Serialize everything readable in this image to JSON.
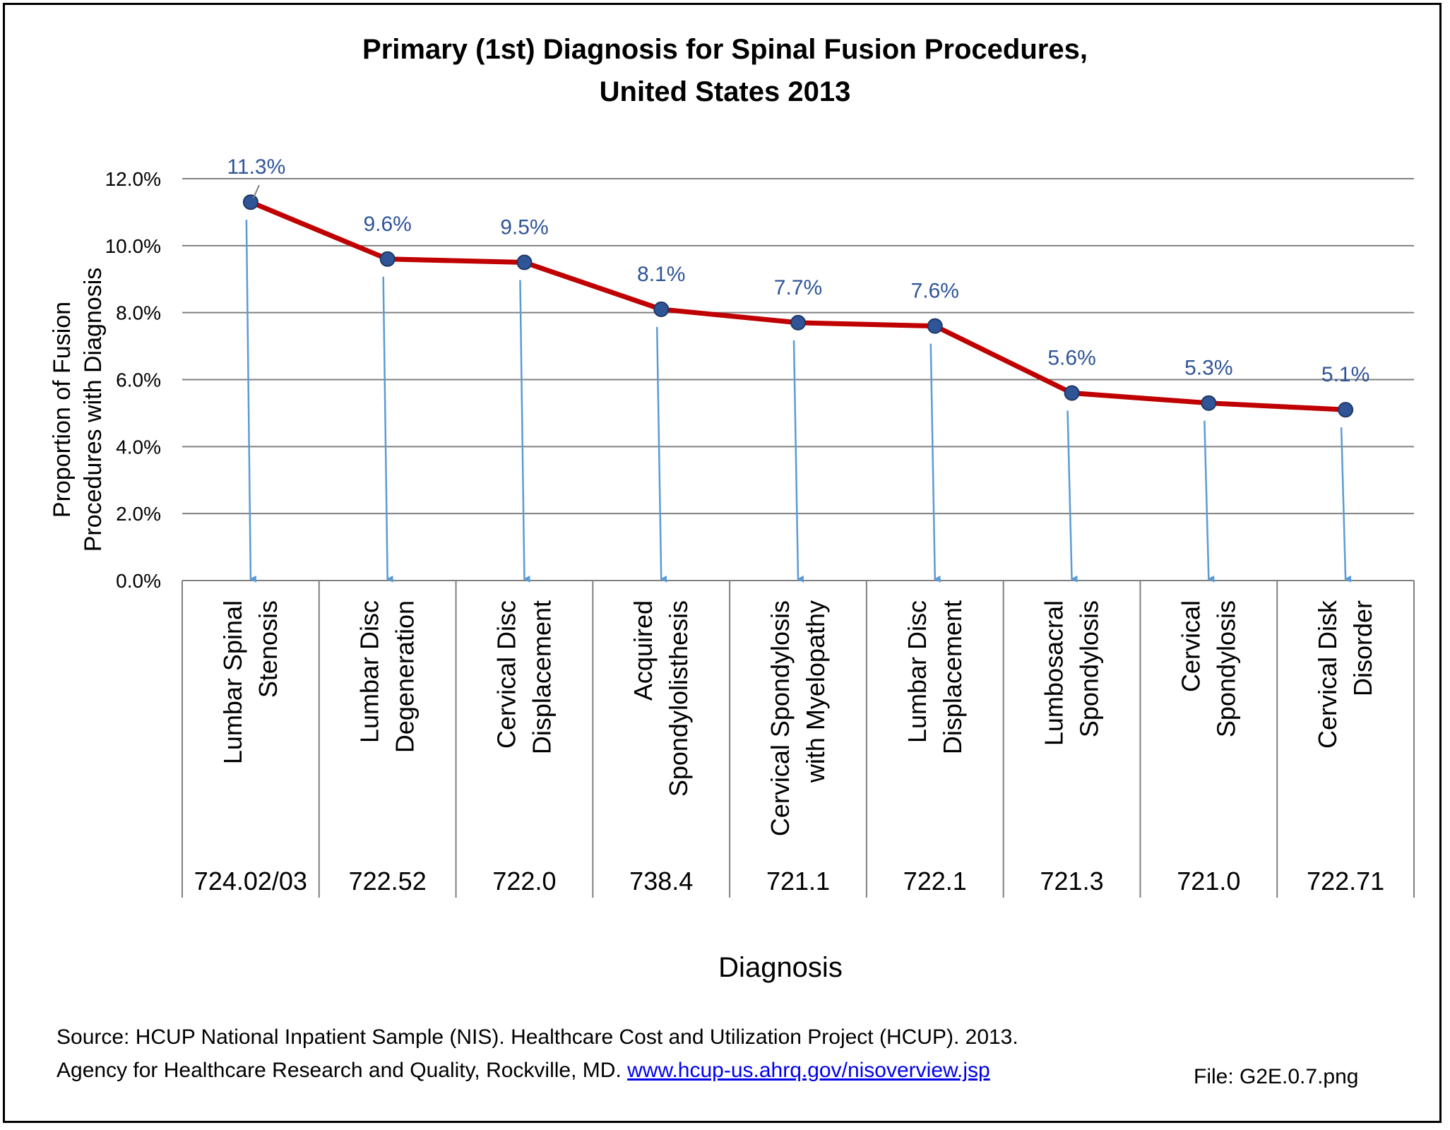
{
  "title_line1": "Primary (1st) Diagnosis for Spinal Fusion Procedures,",
  "title_line2": "United States 2013",
  "y_axis_title_line1": "Proportion of Fusion",
  "y_axis_title_line2": "Procedures with Diagnosis",
  "x_axis_title": "Diagnosis",
  "source_line1": "Source: HCUP National Inpatient Sample (NIS). Healthcare Cost and Utilization Project (HCUP). 2013.",
  "source_line2_text": "Agency for Healthcare Research and Quality, Rockville, MD.",
  "source_link": "www.hcup-us.ahrq.gov/nisoverview.jsp",
  "file_label": "File: G2E.0.7.png",
  "colors": {
    "line": "#c00000",
    "marker": "#2f5597",
    "label": "#2f5597",
    "arrow": "#5b9bd5",
    "grid": "#808080"
  },
  "chart_data": {
    "type": "line",
    "title": "Primary (1st) Diagnosis for Spinal Fusion Procedures, United States 2013",
    "xlabel": "Diagnosis",
    "ylabel": "Proportion of Fusion Procedures with Diagnosis",
    "ylim": [
      0,
      12
    ],
    "yticks": [
      "0.0%",
      "2.0%",
      "4.0%",
      "6.0%",
      "8.0%",
      "10.0%",
      "12.0%"
    ],
    "grid": true,
    "categories": [
      [
        "Lumbar Spinal",
        "Stenosis"
      ],
      [
        "Lumbar Disc",
        "Degeneration"
      ],
      [
        "Cervical Disc",
        "Displacement"
      ],
      [
        "Acquired",
        "Spondylolisthesis"
      ],
      [
        "Cervical Spondylosis",
        "with Myelopathy"
      ],
      [
        "Lumbar Disc",
        "Displacement"
      ],
      [
        "Lumbosacral",
        "Spondylosis"
      ],
      [
        "Cervical",
        "Spondylosis"
      ],
      [
        "Cervical Disk",
        "Disorder"
      ]
    ],
    "codes": [
      "724.02/03",
      "722.52",
      "722.0",
      "738.4",
      "721.1",
      "722.1",
      "721.3",
      "721.0",
      "722.71"
    ],
    "values": [
      11.3,
      9.6,
      9.5,
      8.1,
      7.7,
      7.6,
      5.6,
      5.3,
      5.1
    ],
    "data_labels": [
      "11.3%",
      "9.6%",
      "9.5%",
      "8.1%",
      "7.7%",
      "7.6%",
      "5.6%",
      "5.3%",
      "5.1%"
    ]
  }
}
